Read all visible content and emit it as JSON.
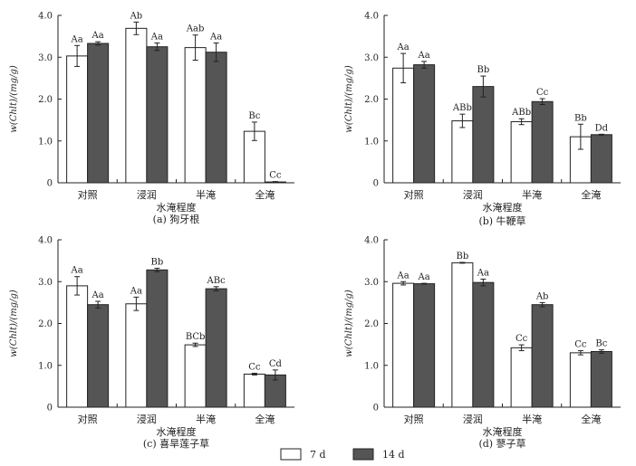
{
  "series_colors": {
    "d7": "#ffffff",
    "d14": "#555555",
    "stroke": "#222222"
  },
  "legend": {
    "d7": "7 d",
    "d14": "14 d"
  },
  "chart_data": [
    {
      "type": "bar",
      "caption": "(a) 狗牙根",
      "xlabel": "水淹程度",
      "ylabel": "w(Chlt)/(mg/g)",
      "ylim": [
        0,
        4.0
      ],
      "yticks": [
        "0",
        "1.0",
        "2.0",
        "3.0",
        "4.0"
      ],
      "categories": [
        "对照",
        "浸润",
        "半淹",
        "全淹"
      ],
      "series": [
        {
          "name": "7 d",
          "values": [
            3.03,
            3.69,
            3.23,
            1.23
          ],
          "errors": [
            0.25,
            0.15,
            0.3,
            0.22
          ],
          "labels": [
            "Aa",
            "Ab",
            "Aab",
            "Bc"
          ]
        },
        {
          "name": "14 d",
          "values": [
            3.33,
            3.25,
            3.12,
            0.02
          ],
          "errors": [
            0.04,
            0.09,
            0.22,
            0.01
          ],
          "labels": [
            "Aa",
            "Aa",
            "Aa",
            "Cc"
          ]
        }
      ]
    },
    {
      "type": "bar",
      "caption": "(b) 牛鞭草",
      "xlabel": "水淹程度",
      "ylabel": "w(Chlt)/(mg/g)",
      "ylim": [
        0,
        4.0
      ],
      "yticks": [
        "0",
        "1.0",
        "2.0",
        "3.0",
        "4.0"
      ],
      "categories": [
        "对照",
        "浸润",
        "半淹",
        "全淹"
      ],
      "series": [
        {
          "name": "7 d",
          "values": [
            2.74,
            1.48,
            1.46,
            1.1
          ],
          "errors": [
            0.35,
            0.16,
            0.07,
            0.3
          ],
          "labels": [
            "Aa",
            "ABb",
            "ABb",
            "Bb"
          ]
        },
        {
          "name": "14 d",
          "values": [
            2.82,
            2.3,
            1.94,
            1.15
          ],
          "errors": [
            0.08,
            0.25,
            0.07,
            0.01
          ],
          "labels": [
            "Aa",
            "Bb",
            "Cc",
            "Dd"
          ]
        }
      ]
    },
    {
      "type": "bar",
      "caption": "(c) 喜旱莲子草",
      "xlabel": "水淹程度",
      "ylabel": "w(Chlt)/(mg/g)",
      "ylim": [
        0,
        4.0
      ],
      "yticks": [
        "0",
        "1.0",
        "2.0",
        "3.0",
        "4.0"
      ],
      "categories": [
        "对照",
        "浸润",
        "半淹",
        "全淹"
      ],
      "series": [
        {
          "name": "7 d",
          "values": [
            2.9,
            2.47,
            1.49,
            0.79
          ],
          "errors": [
            0.22,
            0.16,
            0.04,
            0.02
          ],
          "labels": [
            "Aa",
            "Aa",
            "BCb",
            "Cc"
          ]
        },
        {
          "name": "14 d",
          "values": [
            2.45,
            3.28,
            2.83,
            0.77
          ],
          "errors": [
            0.08,
            0.04,
            0.05,
            0.12
          ],
          "labels": [
            "Aa",
            "Bb",
            "ABc",
            "Cd"
          ]
        }
      ]
    },
    {
      "type": "bar",
      "caption": "(d) 蓼子草",
      "xlabel": "水淹程度",
      "ylabel": "w(Chlt)/(mg/g)",
      "ylim": [
        0,
        4.0
      ],
      "yticks": [
        "0",
        "1.0",
        "2.0",
        "3.0",
        "4.0"
      ],
      "categories": [
        "对照",
        "浸润",
        "半淹",
        "全淹"
      ],
      "series": [
        {
          "name": "7 d",
          "values": [
            2.96,
            3.45,
            1.42,
            1.3
          ],
          "errors": [
            0.04,
            0.01,
            0.07,
            0.05
          ],
          "labels": [
            "Aa",
            "Bb",
            "Cc",
            "Cc"
          ]
        },
        {
          "name": "14 d",
          "values": [
            2.95,
            2.98,
            2.45,
            1.33
          ],
          "errors": [
            0.01,
            0.08,
            0.05,
            0.04
          ],
          "labels": [
            "Aa",
            "Aa",
            "Ab",
            "Bc"
          ]
        }
      ]
    }
  ]
}
